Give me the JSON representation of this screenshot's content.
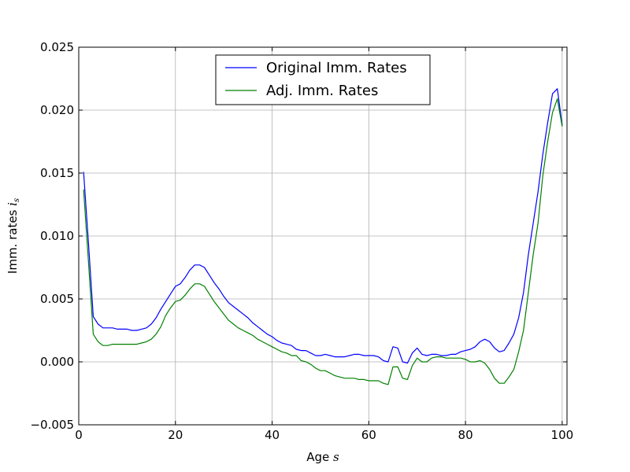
{
  "chart_data": {
    "type": "line",
    "title": "",
    "xlabel": "Age",
    "xlabel_math": "s",
    "ylabel": "Imm. rates",
    "ylabel_math": "i",
    "ylabel_math_sub": "s",
    "xlim": [
      0,
      101
    ],
    "ylim": [
      -0.005,
      0.025
    ],
    "xticks": [
      0,
      20,
      40,
      60,
      80,
      100
    ],
    "xtick_labels": [
      "0",
      "20",
      "40",
      "60",
      "80",
      "100"
    ],
    "yticks": [
      -0.005,
      0.0,
      0.005,
      0.01,
      0.015,
      0.02,
      0.025
    ],
    "ytick_labels": [
      "−0.005",
      "0.000",
      "0.005",
      "0.010",
      "0.015",
      "0.020",
      "0.025"
    ],
    "grid": true,
    "legend_position": "top-center",
    "series": [
      {
        "name": "Original Imm. Rates",
        "color": "#0000ff",
        "x": [
          1,
          2,
          3,
          4,
          5,
          6,
          7,
          8,
          9,
          10,
          11,
          12,
          13,
          14,
          15,
          16,
          17,
          18,
          19,
          20,
          21,
          22,
          23,
          24,
          25,
          26,
          27,
          28,
          29,
          30,
          31,
          32,
          33,
          34,
          35,
          36,
          37,
          38,
          39,
          40,
          41,
          42,
          43,
          44,
          45,
          46,
          47,
          48,
          49,
          50,
          51,
          52,
          53,
          54,
          55,
          56,
          57,
          58,
          59,
          60,
          61,
          62,
          63,
          64,
          65,
          66,
          67,
          68,
          69,
          70,
          71,
          72,
          73,
          74,
          75,
          76,
          77,
          78,
          79,
          80,
          81,
          82,
          83,
          84,
          85,
          86,
          87,
          88,
          89,
          90,
          91,
          92,
          93,
          94,
          95,
          96,
          97,
          98,
          99,
          100
        ],
        "y": [
          0.0151,
          0.0095,
          0.0036,
          0.003,
          0.0027,
          0.0027,
          0.0027,
          0.0026,
          0.0026,
          0.0026,
          0.0025,
          0.0025,
          0.0026,
          0.0027,
          0.003,
          0.0035,
          0.0042,
          0.0048,
          0.0054,
          0.006,
          0.0062,
          0.0067,
          0.0073,
          0.0077,
          0.0077,
          0.0075,
          0.0069,
          0.0063,
          0.0058,
          0.0052,
          0.0047,
          0.0044,
          0.0041,
          0.0038,
          0.0035,
          0.0031,
          0.0028,
          0.0025,
          0.0022,
          0.002,
          0.0017,
          0.0015,
          0.0014,
          0.0013,
          0.001,
          0.0009,
          0.0009,
          0.0007,
          0.0005,
          0.0005,
          0.0006,
          0.0005,
          0.0004,
          0.0004,
          0.0004,
          0.0005,
          0.0006,
          0.0006,
          0.0005,
          0.0005,
          0.0005,
          0.0004,
          0.0001,
          0.0,
          0.0012,
          0.0011,
          0.0,
          -0.0001,
          0.0007,
          0.0011,
          0.0006,
          0.0005,
          0.0006,
          0.0006,
          0.0005,
          0.0005,
          0.0006,
          0.0006,
          0.0008,
          0.0009,
          0.001,
          0.0012,
          0.0016,
          0.0018,
          0.0016,
          0.0011,
          0.0008,
          0.0009,
          0.0015,
          0.0022,
          0.0035,
          0.0055,
          0.0085,
          0.011,
          0.0135,
          0.0165,
          0.019,
          0.0213,
          0.0217,
          0.0188
        ]
      },
      {
        "name": "Adj. Imm. Rates",
        "color": "#008000",
        "x": [
          1,
          2,
          3,
          4,
          5,
          6,
          7,
          8,
          9,
          10,
          11,
          12,
          13,
          14,
          15,
          16,
          17,
          18,
          19,
          20,
          21,
          22,
          23,
          24,
          25,
          26,
          27,
          28,
          29,
          30,
          31,
          32,
          33,
          34,
          35,
          36,
          37,
          38,
          39,
          40,
          41,
          42,
          43,
          44,
          45,
          46,
          47,
          48,
          49,
          50,
          51,
          52,
          53,
          54,
          55,
          56,
          57,
          58,
          59,
          60,
          61,
          62,
          63,
          64,
          65,
          66,
          67,
          68,
          69,
          70,
          71,
          72,
          73,
          74,
          75,
          76,
          77,
          78,
          79,
          80,
          81,
          82,
          83,
          84,
          85,
          86,
          87,
          88,
          89,
          90,
          91,
          92,
          93,
          94,
          95,
          96,
          97,
          98,
          99,
          100
        ],
        "y": [
          0.0137,
          0.008,
          0.0022,
          0.0016,
          0.0013,
          0.0013,
          0.0014,
          0.0014,
          0.0014,
          0.0014,
          0.0014,
          0.0014,
          0.0015,
          0.0016,
          0.0018,
          0.0022,
          0.0028,
          0.0037,
          0.0043,
          0.0048,
          0.0049,
          0.0053,
          0.0058,
          0.0062,
          0.0062,
          0.006,
          0.0054,
          0.0048,
          0.0043,
          0.0038,
          0.0033,
          0.003,
          0.0027,
          0.0025,
          0.0023,
          0.0021,
          0.0018,
          0.0016,
          0.0014,
          0.0012,
          0.001,
          0.0008,
          0.0007,
          0.0005,
          0.0005,
          0.0001,
          0.0,
          -0.0002,
          -0.0005,
          -0.0007,
          -0.0007,
          -0.0009,
          -0.0011,
          -0.0012,
          -0.0013,
          -0.0013,
          -0.0013,
          -0.0014,
          -0.0014,
          -0.0015,
          -0.0015,
          -0.0015,
          -0.0017,
          -0.0018,
          -0.0004,
          -0.0004,
          -0.0013,
          -0.0014,
          -0.0003,
          0.0003,
          0.0,
          0.0,
          0.0003,
          0.0004,
          0.0004,
          0.0003,
          0.0003,
          0.0003,
          0.0003,
          0.0002,
          0.0,
          0.0,
          0.0001,
          -0.0001,
          -0.0006,
          -0.0013,
          -0.0017,
          -0.0017,
          -0.0012,
          -0.0006,
          0.0008,
          0.0025,
          0.0055,
          0.0085,
          0.011,
          0.0148,
          0.0175,
          0.0198,
          0.0209,
          0.0187
        ]
      }
    ]
  }
}
